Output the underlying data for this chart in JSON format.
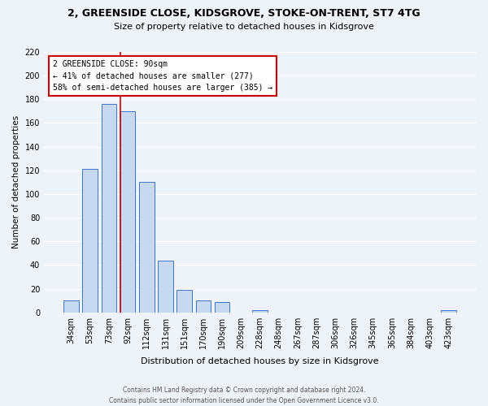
{
  "title": "2, GREENSIDE CLOSE, KIDSGROVE, STOKE-ON-TRENT, ST7 4TG",
  "subtitle": "Size of property relative to detached houses in Kidsgrove",
  "xlabel": "Distribution of detached houses by size in Kidsgrove",
  "ylabel": "Number of detached properties",
  "bar_labels": [
    "34sqm",
    "53sqm",
    "73sqm",
    "92sqm",
    "112sqm",
    "131sqm",
    "151sqm",
    "170sqm",
    "190sqm",
    "209sqm",
    "228sqm",
    "248sqm",
    "267sqm",
    "287sqm",
    "306sqm",
    "326sqm",
    "345sqm",
    "365sqm",
    "384sqm",
    "403sqm",
    "423sqm"
  ],
  "bar_values": [
    10,
    121,
    176,
    170,
    110,
    44,
    19,
    10,
    9,
    0,
    2,
    0,
    0,
    0,
    0,
    0,
    0,
    0,
    0,
    0,
    2
  ],
  "bar_color": "#c6d9f1",
  "bar_edge_color": "#4472c4",
  "annotation_box_text": "2 GREENSIDE CLOSE: 90sqm\n← 41% of detached houses are smaller (277)\n58% of semi-detached houses are larger (385) →",
  "annotation_box_color": "white",
  "annotation_box_edge_color": "#cc0000",
  "vline_color": "#cc0000",
  "vline_x_index": 3,
  "ylim": [
    0,
    220
  ],
  "yticks": [
    0,
    20,
    40,
    60,
    80,
    100,
    120,
    140,
    160,
    180,
    200,
    220
  ],
  "footer": "Contains HM Land Registry data © Crown copyright and database right 2024.\nContains public sector information licensed under the Open Government Licence v3.0.",
  "bg_color": "#eef2f9",
  "grid_color": "white"
}
